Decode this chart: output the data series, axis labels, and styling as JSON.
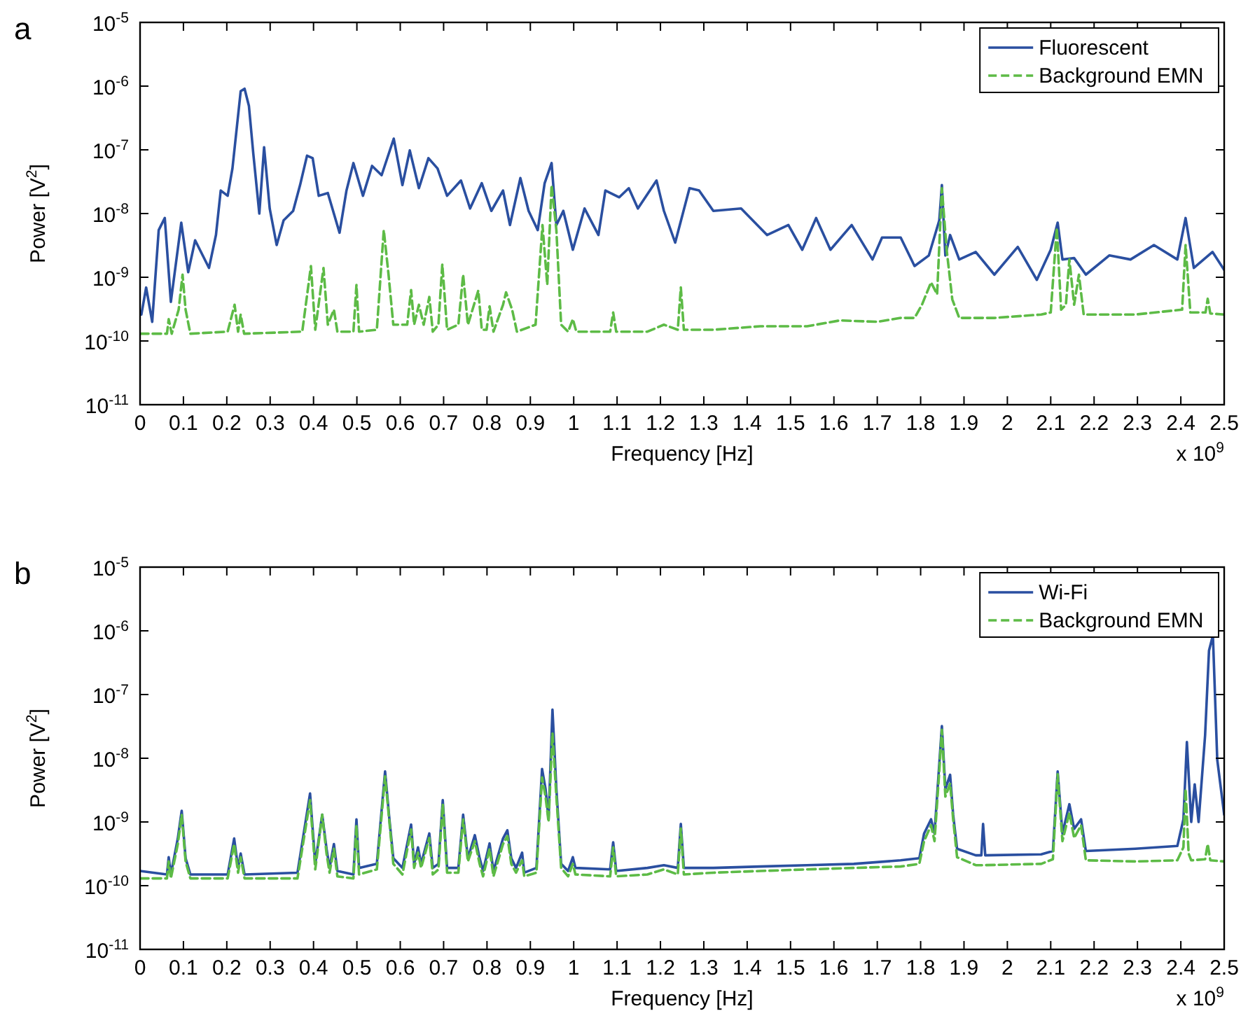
{
  "chart_data": [
    {
      "type": "line",
      "title": "a",
      "xlabel": "Frequency [Hz]",
      "ylabel": "Power [V$^{2}$]",
      "annotations": [
        "x 10$^{9}$"
      ],
      "log": "y",
      "legend": "top right",
      "xlim": [
        0,
        2.5
      ],
      "xticks": [
        0,
        0.1,
        0.2,
        0.3,
        0.4,
        0.5,
        0.6,
        0.7,
        0.8,
        0.9,
        1,
        1.1,
        1.2,
        1.3,
        1.4,
        1.5,
        1.6,
        1.7,
        1.8,
        1.9,
        2,
        2.1,
        2.2,
        2.3,
        2.4,
        2.5
      ],
      "ylim": [
        1e-11,
        1e-05
      ],
      "yticks": [
        {
          "value": 1e-11,
          "label": "10$^{-11}$"
        },
        {
          "value": 1e-10,
          "label": "10$^{-10}$"
        },
        {
          "value": 1e-09,
          "label": "10$^{-9}$"
        },
        {
          "value": 1e-08,
          "label": "10$^{-8}$"
        },
        {
          "value": 1e-07,
          "label": "10$^{-7}$"
        },
        {
          "value": 1e-06,
          "label": "10$^{-6}$"
        },
        {
          "value": 1e-05,
          "label": "10$^{-5}$"
        }
      ],
      "series": [
        {
          "name": "Fluorescent",
          "color": "#2a4fa0",
          "line_style": "solid",
          "x": [
            0.003,
            0.014,
            0.028,
            0.043,
            0.057,
            0.071,
            0.095,
            0.111,
            0.127,
            0.159,
            0.175,
            0.186,
            0.202,
            0.213,
            0.232,
            0.241,
            0.251,
            0.261,
            0.275,
            0.286,
            0.299,
            0.315,
            0.331,
            0.353,
            0.369,
            0.385,
            0.398,
            0.412,
            0.433,
            0.46,
            0.476,
            0.492,
            0.514,
            0.535,
            0.557,
            0.585,
            0.605,
            0.622,
            0.643,
            0.665,
            0.686,
            0.708,
            0.74,
            0.761,
            0.788,
            0.81,
            0.837,
            0.853,
            0.877,
            0.896,
            0.917,
            0.933,
            0.949,
            0.96,
            0.976,
            0.998,
            1.025,
            1.057,
            1.073,
            1.105,
            1.127,
            1.148,
            1.191,
            1.208,
            1.234,
            1.267,
            1.289,
            1.322,
            1.386,
            1.446,
            1.495,
            1.527,
            1.559,
            1.592,
            1.641,
            1.689,
            1.711,
            1.754,
            1.786,
            1.819,
            1.843,
            1.849,
            1.857,
            1.868,
            1.889,
            1.927,
            1.97,
            2.024,
            2.068,
            2.1,
            2.116,
            2.127,
            2.154,
            2.181,
            2.235,
            2.284,
            2.338,
            2.392,
            2.411,
            2.43,
            2.473,
            2.5
          ],
          "values": [
            2.6e-10,
            6.9e-10,
            2e-10,
            5.5e-09,
            8.5e-09,
            4.1e-10,
            7.2e-09,
            1.2e-09,
            3.8e-09,
            1.4e-09,
            4.6e-09,
            2.3e-08,
            1.9e-08,
            5.1e-08,
            8.3e-07,
            9.1e-07,
            4.9e-07,
            8.9e-08,
            1e-08,
            1.1e-07,
            1.2e-08,
            3.2e-09,
            7.8e-09,
            1.1e-08,
            2.8e-08,
            8.1e-08,
            7.4e-08,
            1.9e-08,
            2.1e-08,
            5e-09,
            2.3e-08,
            6.2e-08,
            1.9e-08,
            5.6e-08,
            4e-08,
            1.5e-07,
            2.8e-08,
            9.8e-08,
            2.5e-08,
            7.4e-08,
            5.1e-08,
            1.9e-08,
            3.3e-08,
            1.2e-08,
            3e-08,
            1.1e-08,
            2.3e-08,
            6.6e-09,
            3.6e-08,
            1.1e-08,
            5.5e-09,
            3e-08,
            6.2e-08,
            6.6e-09,
            1.1e-08,
            2.7e-09,
            1.2e-08,
            4.6e-09,
            2.3e-08,
            1.8e-08,
            2.5e-08,
            1.2e-08,
            3.3e-08,
            1.1e-08,
            3.5e-09,
            2.5e-08,
            2.3e-08,
            1.1e-08,
            1.2e-08,
            4.6e-09,
            6.6e-09,
            2.7e-09,
            8.5e-09,
            2.7e-09,
            6.6e-09,
            1.9e-09,
            4.2e-09,
            4.2e-09,
            1.5e-09,
            2.2e-09,
            7.8e-09,
            2.8e-08,
            2.2e-09,
            4.6e-09,
            1.9e-09,
            2.5e-09,
            1.1e-09,
            3e-09,
            9.1e-10,
            2.7e-09,
            7.2e-09,
            1.9e-09,
            2e-09,
            1.1e-09,
            2.2e-09,
            1.9e-09,
            3.2e-09,
            1.9e-09,
            8.5e-09,
            1.4e-09,
            2.5e-09,
            1.3e-09
          ]
        },
        {
          "name": "Background EMN",
          "color": "#5dbb46",
          "line_style": "dashed",
          "x": [
            0,
            0.062,
            0.066,
            0.073,
            0.089,
            0.098,
            0.105,
            0.116,
            0.202,
            0.218,
            0.226,
            0.232,
            0.24,
            0.374,
            0.394,
            0.404,
            0.423,
            0.433,
            0.447,
            0.455,
            0.492,
            0.499,
            0.505,
            0.546,
            0.562,
            0.573,
            0.584,
            0.616,
            0.625,
            0.632,
            0.643,
            0.654,
            0.667,
            0.675,
            0.688,
            0.697,
            0.708,
            0.734,
            0.745,
            0.756,
            0.78,
            0.788,
            0.799,
            0.806,
            0.815,
            0.837,
            0.844,
            0.858,
            0.869,
            0.912,
            0.928,
            0.939,
            0.949,
            0.96,
            0.971,
            0.987,
            0.998,
            1.006,
            1.084,
            1.091,
            1.098,
            1.17,
            1.208,
            1.24,
            1.247,
            1.254,
            1.322,
            1.43,
            1.538,
            1.614,
            1.7,
            1.754,
            1.786,
            1.803,
            1.824,
            1.838,
            1.849,
            1.86,
            1.873,
            1.889,
            1.97,
            2.078,
            2.1,
            2.114,
            2.124,
            2.135,
            2.143,
            2.154,
            2.165,
            2.176,
            2.295,
            2.403,
            2.411,
            2.422,
            2.457,
            2.462,
            2.468,
            2.5
          ],
          "values": [
            1.3e-10,
            1.3e-10,
            2.2e-10,
            1.3e-10,
            3.1e-10,
            1.1e-09,
            3.1e-10,
            1.3e-10,
            1.4e-10,
            3.7e-10,
            1.4e-10,
            2.6e-10,
            1.3e-10,
            1.4e-10,
            1.5e-09,
            1.5e-10,
            1.4e-09,
            1.8e-10,
            3.1e-10,
            1.4e-10,
            1.4e-10,
            7.6e-10,
            1.4e-10,
            1.5e-10,
            5.5e-09,
            1.1e-09,
            1.8e-10,
            1.8e-10,
            6.3e-10,
            1.8e-10,
            3.7e-10,
            1.8e-10,
            4.9e-10,
            1.4e-10,
            1.8e-10,
            1.6e-09,
            1.5e-10,
            1.8e-10,
            1.1e-09,
            1.8e-10,
            6.2e-10,
            1.5e-10,
            1.5e-10,
            3.5e-10,
            1.4e-10,
            3.7e-10,
            5.8e-10,
            3.1e-10,
            1.4e-10,
            1.8e-10,
            6.6e-09,
            7.6e-10,
            2.8e-08,
            5.5e-09,
            1.8e-10,
            1.4e-10,
            2.2e-10,
            1.4e-10,
            1.4e-10,
            2.8e-10,
            1.4e-10,
            1.4e-10,
            1.8e-10,
            1.5e-10,
            6.9e-10,
            1.5e-10,
            1.5e-10,
            1.7e-10,
            1.7e-10,
            2.1e-10,
            2e-10,
            2.3e-10,
            2.3e-10,
            3.7e-10,
            8.3e-10,
            5.4e-10,
            2.5e-08,
            2.7e-09,
            4.5e-10,
            2.3e-10,
            2.3e-10,
            2.6e-10,
            2.8e-10,
            6e-09,
            3.1e-10,
            3.7e-10,
            1.9e-09,
            3.7e-10,
            1.1e-09,
            2.6e-10,
            2.6e-10,
            3.1e-10,
            3.2e-09,
            2.8e-10,
            2.8e-10,
            4.6e-10,
            2.7e-10,
            2.6e-10
          ]
        }
      ]
    },
    {
      "type": "line",
      "title": "b",
      "xlabel": "Frequency [Hz]",
      "ylabel": "Power [V$^{2}$]",
      "annotations": [
        "x 10$^{9}$"
      ],
      "log": "y",
      "legend": "top right",
      "xlim": [
        0,
        2.5
      ],
      "xticks": [
        0,
        0.1,
        0.2,
        0.3,
        0.4,
        0.5,
        0.6,
        0.7,
        0.8,
        0.9,
        1,
        1.1,
        1.2,
        1.3,
        1.4,
        1.5,
        1.6,
        1.7,
        1.8,
        1.9,
        2,
        2.1,
        2.2,
        2.3,
        2.4,
        2.5
      ],
      "ylim": [
        1e-11,
        1e-05
      ],
      "yticks": [
        {
          "value": 1e-11,
          "label": "10$^{-11}$"
        },
        {
          "value": 1e-10,
          "label": "10$^{-10}$"
        },
        {
          "value": 1e-09,
          "label": "10$^{-9}$"
        },
        {
          "value": 1e-08,
          "label": "10$^{-8}$"
        },
        {
          "value": 1e-07,
          "label": "10$^{-7}$"
        },
        {
          "value": 1e-06,
          "label": "10$^{-6}$"
        },
        {
          "value": 1e-05,
          "label": "10$^{-5}$"
        }
      ],
      "series": [
        {
          "name": "Wi-Fi",
          "color": "#2a4fa0",
          "line_style": "solid",
          "x": [
            0,
            0.062,
            0.066,
            0.071,
            0.087,
            0.096,
            0.105,
            0.116,
            0.202,
            0.217,
            0.226,
            0.232,
            0.241,
            0.363,
            0.392,
            0.404,
            0.42,
            0.43,
            0.437,
            0.447,
            0.455,
            0.492,
            0.499,
            0.505,
            0.546,
            0.565,
            0.575,
            0.584,
            0.605,
            0.625,
            0.632,
            0.641,
            0.648,
            0.667,
            0.675,
            0.688,
            0.698,
            0.708,
            0.734,
            0.745,
            0.756,
            0.772,
            0.783,
            0.791,
            0.806,
            0.815,
            0.837,
            0.847,
            0.856,
            0.867,
            0.881,
            0.886,
            0.914,
            0.927,
            0.935,
            0.942,
            0.951,
            0.96,
            0.971,
            0.987,
            0.998,
            1.004,
            1.084,
            1.091,
            1.098,
            1.17,
            1.208,
            1.24,
            1.247,
            1.254,
            1.322,
            1.43,
            1.538,
            1.646,
            1.754,
            1.797,
            1.808,
            1.824,
            1.832,
            1.843,
            1.849,
            1.857,
            1.868,
            1.875,
            1.884,
            1.927,
            1.94,
            1.944,
            1.949,
            2.078,
            2.105,
            2.116,
            2.127,
            2.143,
            2.154,
            2.17,
            2.181,
            2.295,
            2.392,
            2.406,
            2.414,
            2.424,
            2.432,
            2.441,
            2.456,
            2.465,
            2.474,
            2.484,
            2.5
          ],
          "values": [
            1.7e-10,
            1.5e-10,
            2.8e-10,
            1.5e-10,
            5.5e-10,
            1.5e-09,
            2.7e-10,
            1.5e-10,
            1.5e-10,
            5.5e-10,
            1.9e-10,
            3.2e-10,
            1.5e-10,
            1.6e-10,
            2.8e-09,
            2.2e-10,
            1.3e-09,
            3.8e-10,
            1.9e-10,
            4.5e-10,
            1.7e-10,
            1.5e-10,
            1.1e-09,
            1.9e-10,
            2.2e-10,
            6.2e-09,
            1.1e-09,
            2.7e-10,
            1.9e-10,
            9.1e-10,
            2.2e-10,
            4e-10,
            2.2e-10,
            6.6e-10,
            1.9e-10,
            2.2e-10,
            2.2e-09,
            1.9e-10,
            1.9e-10,
            1.3e-09,
            2.7e-10,
            6.2e-10,
            2.7e-10,
            1.7e-10,
            4.6e-10,
            1.7e-10,
            5.5e-10,
            7.4e-10,
            2.7e-10,
            1.9e-10,
            3.3e-10,
            1.6e-10,
            1.9e-10,
            6.8e-09,
            3.3e-09,
            1.1e-09,
            5.8e-08,
            3.3e-09,
            2.2e-10,
            1.7e-10,
            2.8e-10,
            1.9e-10,
            1.8e-10,
            4.8e-10,
            1.7e-10,
            1.9e-10,
            2.1e-10,
            1.9e-10,
            9.3e-10,
            1.9e-10,
            1.9e-10,
            2e-10,
            2.1e-10,
            2.2e-10,
            2.5e-10,
            2.7e-10,
            6.6e-10,
            1.1e-09,
            6.6e-10,
            8.1e-09,
            3.2e-08,
            3.3e-09,
            5.5e-09,
            1.3e-09,
            3.8e-10,
            3e-10,
            3e-10,
            9.3e-10,
            3e-10,
            3.1e-10,
            3.5e-10,
            6.2e-09,
            6.6e-10,
            1.9e-09,
            7.8e-10,
            1.1e-09,
            3.5e-10,
            3.8e-10,
            4.2e-10,
            1.1e-09,
            1.8e-08,
            1e-09,
            3.9e-09,
            1e-09,
            2.3e-08,
            4.9e-07,
            8.5e-07,
            9.5e-09,
            1.3e-09
          ]
        },
        {
          "name": "Background EMN",
          "color": "#5dbb46",
          "line_style": "dashed",
          "x": [
            0,
            0.062,
            0.066,
            0.071,
            0.087,
            0.096,
            0.105,
            0.116,
            0.202,
            0.217,
            0.226,
            0.232,
            0.241,
            0.363,
            0.392,
            0.404,
            0.42,
            0.43,
            0.437,
            0.447,
            0.455,
            0.492,
            0.499,
            0.505,
            0.546,
            0.565,
            0.575,
            0.584,
            0.605,
            0.625,
            0.632,
            0.641,
            0.648,
            0.667,
            0.675,
            0.688,
            0.698,
            0.708,
            0.734,
            0.745,
            0.756,
            0.772,
            0.783,
            0.791,
            0.806,
            0.815,
            0.837,
            0.847,
            0.856,
            0.867,
            0.881,
            0.886,
            0.914,
            0.927,
            0.935,
            0.942,
            0.951,
            0.96,
            0.971,
            0.987,
            0.998,
            1.004,
            1.084,
            1.091,
            1.098,
            1.17,
            1.208,
            1.24,
            1.247,
            1.254,
            1.322,
            1.43,
            1.538,
            1.646,
            1.754,
            1.797,
            1.808,
            1.824,
            1.832,
            1.843,
            1.849,
            1.857,
            1.868,
            1.875,
            1.884,
            1.927,
            1.949,
            2.078,
            2.105,
            2.116,
            2.127,
            2.143,
            2.154,
            2.17,
            2.181,
            2.295,
            2.392,
            2.406,
            2.411,
            2.418,
            2.424,
            2.456,
            2.462,
            2.468,
            2.5
          ],
          "values": [
            1.3e-10,
            1.3e-10,
            2.4e-10,
            1.3e-10,
            4.5e-10,
            1.3e-09,
            2.4e-10,
            1.3e-10,
            1.3e-10,
            4.5e-10,
            1.6e-10,
            2.8e-10,
            1.3e-10,
            1.3e-10,
            2.2e-09,
            1.8e-10,
            1.3e-09,
            3.2e-10,
            1.6e-10,
            3.8e-10,
            1.4e-10,
            1.3e-10,
            8.9e-10,
            1.5e-10,
            1.8e-10,
            5.2e-09,
            1e-09,
            2.2e-10,
            1.5e-10,
            7.6e-10,
            1.9e-10,
            3.3e-10,
            1.9e-10,
            5.6e-10,
            1.5e-10,
            1.8e-10,
            1.9e-09,
            1.6e-10,
            1.6e-10,
            1.1e-09,
            2.4e-10,
            5e-10,
            2.2e-10,
            1.4e-10,
            3.8e-10,
            1.4e-10,
            4.5e-10,
            6e-10,
            2.2e-10,
            1.6e-10,
            2.5e-10,
            1.4e-10,
            1.6e-10,
            5e-09,
            2.5e-09,
            1e-09,
            2.5e-08,
            2.5e-09,
            1.9e-10,
            1.4e-10,
            2.2e-10,
            1.5e-10,
            1.4e-10,
            4e-10,
            1.4e-10,
            1.5e-10,
            1.8e-10,
            1.5e-10,
            7.9e-10,
            1.5e-10,
            1.6e-10,
            1.7e-10,
            1.8e-10,
            1.9e-10,
            2e-10,
            2.2e-10,
            5e-10,
            8.9e-10,
            5e-10,
            6.3e-09,
            2.8e-08,
            2.5e-09,
            4e-09,
            1.1e-09,
            2.8e-10,
            2.1e-10,
            2.1e-10,
            2.2e-10,
            2.6e-10,
            5.6e-09,
            5e-10,
            1.4e-09,
            5.6e-10,
            8.9e-10,
            2.5e-10,
            2.4e-10,
            2.5e-10,
            4e-10,
            3.3e-09,
            3.2e-10,
            2.5e-10,
            2.6e-10,
            4.5e-10,
            2.5e-10,
            2.4e-10
          ]
        }
      ]
    }
  ]
}
